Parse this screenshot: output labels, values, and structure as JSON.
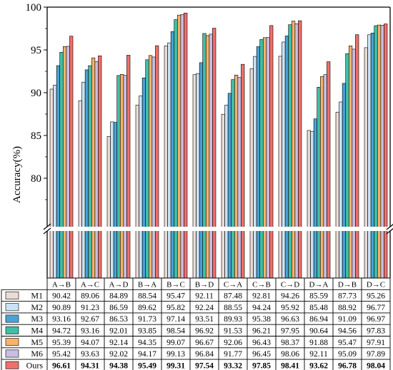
{
  "chart_data": {
    "type": "bar",
    "title": "",
    "xlabel": "",
    "ylabel": "Accuracy(%)",
    "ylim": [
      75,
      100
    ],
    "axis_break": true,
    "yticks": [
      80,
      85,
      90,
      95,
      100
    ],
    "grid": false,
    "legend_placement": "table-left",
    "categories": [
      "A→B",
      "A→C",
      "A→D",
      "B→A",
      "B→C",
      "B→D",
      "C→A",
      "C→B",
      "C→D",
      "D→A",
      "D→B",
      "D→C"
    ],
    "series": [
      {
        "name": "M1",
        "color": "#ecdcd6",
        "values": [
          90.42,
          89.06,
          84.89,
          88.54,
          95.47,
          92.11,
          87.48,
          92.81,
          94.26,
          85.59,
          87.73,
          95.26
        ]
      },
      {
        "name": "M2",
        "color": "#c9e3f4",
        "values": [
          90.89,
          91.23,
          86.59,
          89.62,
          95.82,
          92.24,
          88.55,
          94.24,
          95.92,
          85.48,
          88.92,
          96.77
        ]
      },
      {
        "name": "M3",
        "color": "#4aa3d8",
        "values": [
          93.16,
          92.67,
          86.53,
          91.73,
          97.14,
          93.51,
          89.93,
          95.38,
          96.63,
          86.94,
          91.09,
          96.97
        ]
      },
      {
        "name": "M4",
        "color": "#3fbfa5",
        "values": [
          94.72,
          93.16,
          92.01,
          93.85,
          98.54,
          96.92,
          91.53,
          96.21,
          97.95,
          90.64,
          94.56,
          97.83
        ]
      },
      {
        "name": "M5",
        "color": "#f5b36b",
        "values": [
          95.39,
          94.07,
          92.14,
          94.35,
          99.07,
          96.67,
          92.06,
          96.43,
          98.37,
          91.88,
          95.47,
          97.91
        ]
      },
      {
        "name": "M6",
        "color": "#c8bde2",
        "values": [
          95.42,
          93.63,
          92.02,
          94.17,
          99.13,
          96.84,
          91.77,
          96.45,
          98.06,
          92.11,
          95.09,
          97.89
        ]
      },
      {
        "name": "Ours",
        "color": "#f0706a",
        "values": [
          96.61,
          94.31,
          94.38,
          95.49,
          99.31,
          97.54,
          93.32,
          97.85,
          98.41,
          93.62,
          96.78,
          98.04
        ]
      }
    ],
    "table": [
      [
        "90.42",
        "89.06",
        "84.89",
        "88.54",
        "95.47",
        "92.11",
        "87.48",
        "92.81",
        "94.26",
        "85.59",
        "87.73",
        "95.26"
      ],
      [
        "90.89",
        "91.23",
        "86.59",
        "89.62",
        "95.82",
        "92.24",
        "88.55",
        "94.24",
        "95.92",
        "85.48",
        "88.92",
        "96.77"
      ],
      [
        "93.16",
        "92.67",
        "86.53",
        "91.73",
        "97.14",
        "93.51",
        "89.93",
        "95.38",
        "96.63",
        "86.94",
        "91.09",
        "96.97"
      ],
      [
        "94.72",
        "93.16",
        "92.01",
        "93.85",
        "98.54",
        "96.92",
        "91.53",
        "96.21",
        "97.95",
        "90.64",
        "94.56",
        "97.83"
      ],
      [
        "95.39",
        "94.07",
        "92.14",
        "94.35",
        "99.07",
        "96.67",
        "92.06",
        "96.43",
        "98.37",
        "91.88",
        "95.47",
        "97.91"
      ],
      [
        "95.42",
        "93.63",
        "92.02",
        "94.17",
        "99.13",
        "96.84",
        "91.77",
        "96.45",
        "98.06",
        "92.11",
        "95.09",
        "97.89"
      ],
      [
        "96.61",
        "94.31",
        "94.38",
        "95.49",
        "99.31",
        "97.54",
        "93.32",
        "97.85",
        "98.41",
        "93.62",
        "96.78",
        "98.04"
      ]
    ]
  }
}
